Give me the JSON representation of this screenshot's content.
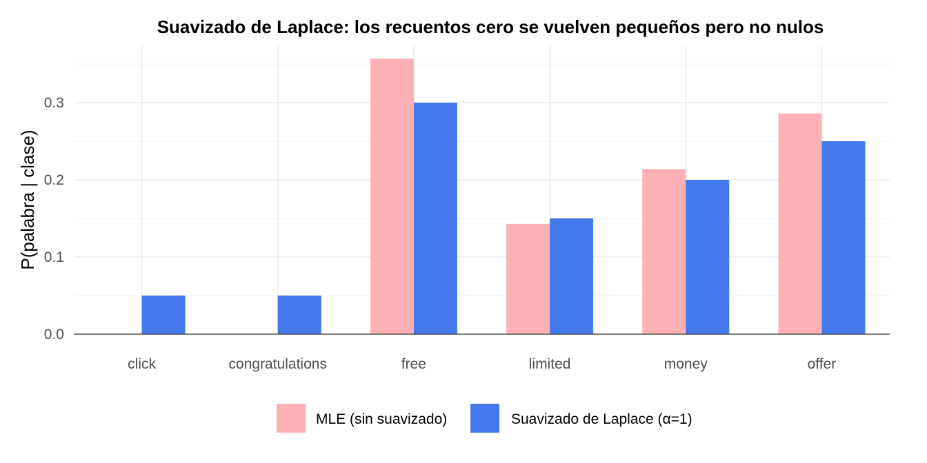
{
  "chart_data": {
    "type": "bar",
    "title": "Suavizado de Laplace: los recuentos cero se vuelven pequeños pero no nulos",
    "xlabel": "",
    "ylabel": "P(palabra | clase)",
    "categories": [
      "click",
      "congratulations",
      "free",
      "limited",
      "money",
      "offer"
    ],
    "series": [
      {
        "name": "MLE (sin suavizado)",
        "color": "#fbb1b5",
        "values": [
          0,
          0,
          0.357,
          0.143,
          0.214,
          0.286
        ]
      },
      {
        "name": "Suavizado de Laplace (α=1)",
        "color": "#4479ee",
        "values": [
          0.05,
          0.05,
          0.3,
          0.15,
          0.2,
          0.25
        ]
      }
    ],
    "ylim": [
      0,
      0.36
    ],
    "yticks": [
      {
        "value": 0.0,
        "label": "0.0"
      },
      {
        "value": 0.1,
        "label": "0.1"
      },
      {
        "value": 0.2,
        "label": "0.2"
      },
      {
        "value": 0.3,
        "label": "0.3"
      }
    ],
    "grid": true,
    "legend": "bottom"
  }
}
